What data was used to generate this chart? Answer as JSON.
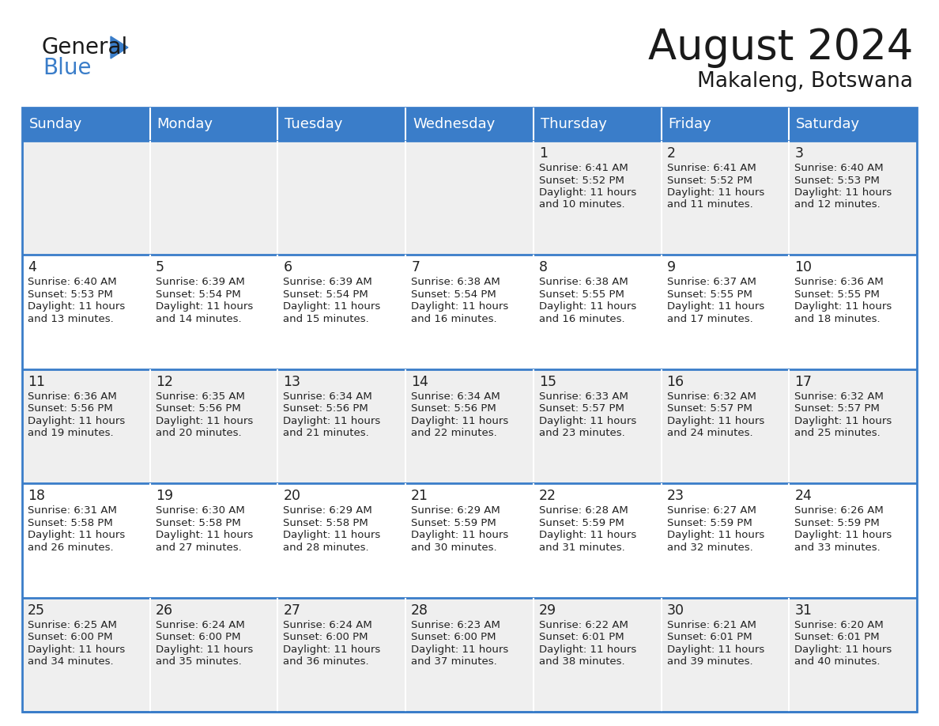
{
  "title": "August 2024",
  "subtitle": "Makaleng, Botswana",
  "days_of_week": [
    "Sunday",
    "Monday",
    "Tuesday",
    "Wednesday",
    "Thursday",
    "Friday",
    "Saturday"
  ],
  "header_bg": "#3A7DC9",
  "header_text": "#FFFFFF",
  "row_bg_odd": "#EFEFEF",
  "row_bg_even": "#FFFFFF",
  "separator_color": "#3A7DC9",
  "text_color": "#222222",
  "calendar_data": [
    [
      null,
      null,
      null,
      null,
      {
        "day": 1,
        "sunrise": "6:41 AM",
        "sunset": "5:52 PM",
        "daylight": "11 hours",
        "daylight2": "and 10 minutes."
      },
      {
        "day": 2,
        "sunrise": "6:41 AM",
        "sunset": "5:52 PM",
        "daylight": "11 hours",
        "daylight2": "and 11 minutes."
      },
      {
        "day": 3,
        "sunrise": "6:40 AM",
        "sunset": "5:53 PM",
        "daylight": "11 hours",
        "daylight2": "and 12 minutes."
      }
    ],
    [
      {
        "day": 4,
        "sunrise": "6:40 AM",
        "sunset": "5:53 PM",
        "daylight": "11 hours",
        "daylight2": "and 13 minutes."
      },
      {
        "day": 5,
        "sunrise": "6:39 AM",
        "sunset": "5:54 PM",
        "daylight": "11 hours",
        "daylight2": "and 14 minutes."
      },
      {
        "day": 6,
        "sunrise": "6:39 AM",
        "sunset": "5:54 PM",
        "daylight": "11 hours",
        "daylight2": "and 15 minutes."
      },
      {
        "day": 7,
        "sunrise": "6:38 AM",
        "sunset": "5:54 PM",
        "daylight": "11 hours",
        "daylight2": "and 16 minutes."
      },
      {
        "day": 8,
        "sunrise": "6:38 AM",
        "sunset": "5:55 PM",
        "daylight": "11 hours",
        "daylight2": "and 16 minutes."
      },
      {
        "day": 9,
        "sunrise": "6:37 AM",
        "sunset": "5:55 PM",
        "daylight": "11 hours",
        "daylight2": "and 17 minutes."
      },
      {
        "day": 10,
        "sunrise": "6:36 AM",
        "sunset": "5:55 PM",
        "daylight": "11 hours",
        "daylight2": "and 18 minutes."
      }
    ],
    [
      {
        "day": 11,
        "sunrise": "6:36 AM",
        "sunset": "5:56 PM",
        "daylight": "11 hours",
        "daylight2": "and 19 minutes."
      },
      {
        "day": 12,
        "sunrise": "6:35 AM",
        "sunset": "5:56 PM",
        "daylight": "11 hours",
        "daylight2": "and 20 minutes."
      },
      {
        "day": 13,
        "sunrise": "6:34 AM",
        "sunset": "5:56 PM",
        "daylight": "11 hours",
        "daylight2": "and 21 minutes."
      },
      {
        "day": 14,
        "sunrise": "6:34 AM",
        "sunset": "5:56 PM",
        "daylight": "11 hours",
        "daylight2": "and 22 minutes."
      },
      {
        "day": 15,
        "sunrise": "6:33 AM",
        "sunset": "5:57 PM",
        "daylight": "11 hours",
        "daylight2": "and 23 minutes."
      },
      {
        "day": 16,
        "sunrise": "6:32 AM",
        "sunset": "5:57 PM",
        "daylight": "11 hours",
        "daylight2": "and 24 minutes."
      },
      {
        "day": 17,
        "sunrise": "6:32 AM",
        "sunset": "5:57 PM",
        "daylight": "11 hours",
        "daylight2": "and 25 minutes."
      }
    ],
    [
      {
        "day": 18,
        "sunrise": "6:31 AM",
        "sunset": "5:58 PM",
        "daylight": "11 hours",
        "daylight2": "and 26 minutes."
      },
      {
        "day": 19,
        "sunrise": "6:30 AM",
        "sunset": "5:58 PM",
        "daylight": "11 hours",
        "daylight2": "and 27 minutes."
      },
      {
        "day": 20,
        "sunrise": "6:29 AM",
        "sunset": "5:58 PM",
        "daylight": "11 hours",
        "daylight2": "and 28 minutes."
      },
      {
        "day": 21,
        "sunrise": "6:29 AM",
        "sunset": "5:59 PM",
        "daylight": "11 hours",
        "daylight2": "and 30 minutes."
      },
      {
        "day": 22,
        "sunrise": "6:28 AM",
        "sunset": "5:59 PM",
        "daylight": "11 hours",
        "daylight2": "and 31 minutes."
      },
      {
        "day": 23,
        "sunrise": "6:27 AM",
        "sunset": "5:59 PM",
        "daylight": "11 hours",
        "daylight2": "and 32 minutes."
      },
      {
        "day": 24,
        "sunrise": "6:26 AM",
        "sunset": "5:59 PM",
        "daylight": "11 hours",
        "daylight2": "and 33 minutes."
      }
    ],
    [
      {
        "day": 25,
        "sunrise": "6:25 AM",
        "sunset": "6:00 PM",
        "daylight": "11 hours",
        "daylight2": "and 34 minutes."
      },
      {
        "day": 26,
        "sunrise": "6:24 AM",
        "sunset": "6:00 PM",
        "daylight": "11 hours",
        "daylight2": "and 35 minutes."
      },
      {
        "day": 27,
        "sunrise": "6:24 AM",
        "sunset": "6:00 PM",
        "daylight": "11 hours",
        "daylight2": "and 36 minutes."
      },
      {
        "day": 28,
        "sunrise": "6:23 AM",
        "sunset": "6:00 PM",
        "daylight": "11 hours",
        "daylight2": "and 37 minutes."
      },
      {
        "day": 29,
        "sunrise": "6:22 AM",
        "sunset": "6:01 PM",
        "daylight": "11 hours",
        "daylight2": "and 38 minutes."
      },
      {
        "day": 30,
        "sunrise": "6:21 AM",
        "sunset": "6:01 PM",
        "daylight": "11 hours",
        "daylight2": "and 39 minutes."
      },
      {
        "day": 31,
        "sunrise": "6:20 AM",
        "sunset": "6:01 PM",
        "daylight": "11 hours",
        "daylight2": "and 40 minutes."
      }
    ]
  ]
}
